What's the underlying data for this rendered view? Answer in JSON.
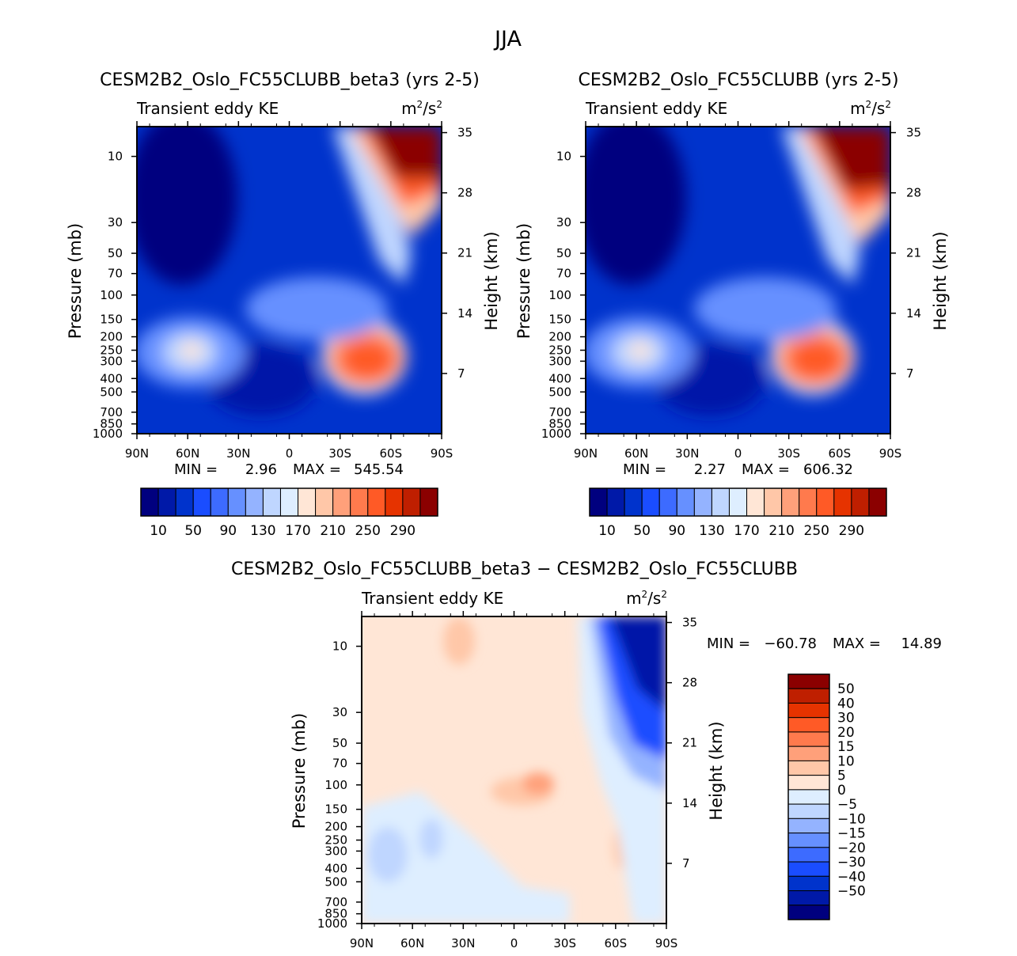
{
  "page_title": "JJA",
  "chart_data": [
    {
      "type": "heatmap",
      "title": "CESM2B2_Oslo_FC55CLUBB_beta3 (yrs 2-5)",
      "subtitle_left": "Transient eddy KE",
      "units_base": "m",
      "units_exp1": "2",
      "units_mid": "/s",
      "units_exp2": "2",
      "ylabel": "Pressure (mb)",
      "ylabel_right": "Height (km)",
      "x_ticks": [
        "90N",
        "60N",
        "30N",
        "0",
        "30S",
        "60S",
        "90S"
      ],
      "y_ticks": [
        "10",
        "30",
        "50",
        "70",
        "100",
        "150",
        "200",
        "250",
        "300",
        "400",
        "500",
        "700",
        "850",
        "1000"
      ],
      "y_right_ticks": [
        "35",
        "28",
        "21",
        "14",
        "7"
      ],
      "min_label": "MIN =",
      "min_value": "2.96",
      "max_label": "MAX =",
      "max_value": "545.54",
      "cbar_labels": [
        "10",
        "50",
        "90",
        "130",
        "170",
        "210",
        "250",
        "290"
      ],
      "cbar_colors": [
        "#00007f",
        "#0019a8",
        "#0033cc",
        "#1a4dff",
        "#3d6bff",
        "#6690ff",
        "#94b3ff",
        "#bfd6ff",
        "#deeeff",
        "#ffe6d6",
        "#ffc7a8",
        "#ffa07a",
        "#ff7a4d",
        "#ff5a26",
        "#e63300",
        "#bf1f00",
        "#8b0000"
      ],
      "min": 2.96,
      "max": 545.54
    },
    {
      "type": "heatmap",
      "title": "CESM2B2_Oslo_FC55CLUBB (yrs 2-5)",
      "subtitle_left": "Transient eddy KE",
      "units_base": "m",
      "units_exp1": "2",
      "units_mid": "/s",
      "units_exp2": "2",
      "ylabel": "Pressure (mb)",
      "ylabel_right": "Height (km)",
      "x_ticks": [
        "90N",
        "60N",
        "30N",
        "0",
        "30S",
        "60S",
        "90S"
      ],
      "y_ticks": [
        "10",
        "30",
        "50",
        "70",
        "100",
        "150",
        "200",
        "250",
        "300",
        "400",
        "500",
        "700",
        "850",
        "1000"
      ],
      "y_right_ticks": [
        "35",
        "28",
        "21",
        "14",
        "7"
      ],
      "min_label": "MIN =",
      "min_value": "2.27",
      "max_label": "MAX =",
      "max_value": "606.32",
      "cbar_labels": [
        "10",
        "50",
        "90",
        "130",
        "170",
        "210",
        "250",
        "290"
      ],
      "cbar_colors": [
        "#00007f",
        "#0019a8",
        "#0033cc",
        "#1a4dff",
        "#3d6bff",
        "#6690ff",
        "#94b3ff",
        "#bfd6ff",
        "#deeeff",
        "#ffe6d6",
        "#ffc7a8",
        "#ffa07a",
        "#ff7a4d",
        "#ff5a26",
        "#e63300",
        "#bf1f00",
        "#8b0000"
      ],
      "min": 2.27,
      "max": 606.32
    },
    {
      "type": "heatmap",
      "title": "CESM2B2_Oslo_FC55CLUBB_beta3 − CESM2B2_Oslo_FC55CLUBB",
      "subtitle_left": "Transient eddy KE",
      "units_base": "m",
      "units_exp1": "2",
      "units_mid": "/s",
      "units_exp2": "2",
      "ylabel": "Pressure (mb)",
      "ylabel_right": "Height (km)",
      "x_ticks": [
        "90N",
        "60N",
        "30N",
        "0",
        "30S",
        "60S",
        "90S"
      ],
      "y_ticks": [
        "10",
        "30",
        "50",
        "70",
        "100",
        "150",
        "200",
        "250",
        "300",
        "400",
        "500",
        "700",
        "850",
        "1000"
      ],
      "y_right_ticks": [
        "35",
        "28",
        "21",
        "14",
        "7"
      ],
      "min_label": "MIN =",
      "min_value": "−60.78",
      "max_label": "MAX =",
      "max_value": "14.89",
      "cbar_labels": [
        "50",
        "40",
        "30",
        "20",
        "15",
        "10",
        "5",
        "0",
        "−5",
        "−10",
        "−15",
        "−20",
        "−30",
        "−40",
        "−50"
      ],
      "cbar_colors": [
        "#8b0000",
        "#bf1f00",
        "#e63300",
        "#ff5a26",
        "#ff7a4d",
        "#ffa07a",
        "#ffc7a8",
        "#ffe6d6",
        "#deeeff",
        "#bfd6ff",
        "#94b3ff",
        "#6690ff",
        "#3d6bff",
        "#1a4dff",
        "#0033cc",
        "#0019a8",
        "#00007f"
      ],
      "min": -60.78,
      "max": 14.89
    }
  ]
}
